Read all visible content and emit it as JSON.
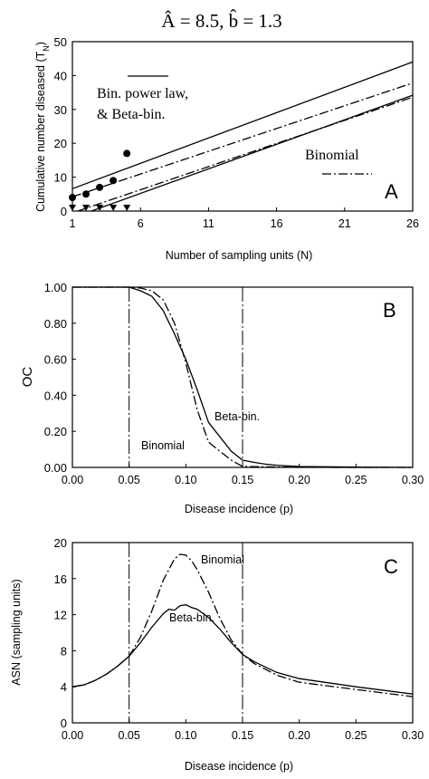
{
  "figure_title": "Â = 8.5, b̂ = 1.3",
  "chart_data": [
    {
      "type": "line",
      "panel_label": "A",
      "xlabel": "Number of sampling units (N)",
      "ylabel": "Cumulative number diseased (T",
      "ylabel_sub": "N",
      "xlim": [
        1,
        26
      ],
      "ylim": [
        0,
        50
      ],
      "xticks": [
        1,
        6,
        11,
        16,
        21,
        26
      ],
      "yticks": [
        0,
        10,
        20,
        30,
        40,
        50
      ],
      "legend": {
        "bpl_line1": "Bin. power law,",
        "bpl_line2": "& Beta-bin.",
        "binomial": "Binomial"
      },
      "series": [
        {
          "name": "Bin. power law, & Beta-bin.",
          "style": "solid",
          "x": [
            1,
            26
          ],
          "y": [
            6.6,
            44.0
          ]
        },
        {
          "name": "Binomial",
          "style": "dashdot",
          "x": [
            1,
            26
          ],
          "y": [
            4.2,
            37.8
          ]
        },
        {
          "style": "dashdot",
          "x": [
            1.4,
            26
          ],
          "y": [
            0.0,
            33.6
          ]
        },
        {
          "style": "solid",
          "x": [
            2.4,
            26
          ],
          "y": [
            0.0,
            34.2
          ]
        }
      ],
      "points_circle": {
        "x": [
          1,
          2,
          3,
          4,
          5
        ],
        "y": [
          4,
          5,
          7,
          9,
          17
        ]
      },
      "points_triangle": {
        "x": [
          1,
          2,
          3,
          4,
          5
        ],
        "y": [
          0,
          0,
          0,
          0,
          0
        ]
      }
    },
    {
      "type": "line",
      "panel_label": "B",
      "xlabel": "Disease incidence (p)",
      "ylabel": "OC",
      "xlim": [
        0,
        0.3
      ],
      "ylim": [
        0,
        1
      ],
      "xticks": [
        "0.00",
        "0.05",
        "0.10",
        "0.15",
        "0.20",
        "0.25",
        "0.30"
      ],
      "yticks": [
        "0.00",
        "0.20",
        "0.40",
        "0.60",
        "0.80",
        "1.00"
      ],
      "vlines": [
        0.05,
        0.15
      ],
      "labels": {
        "beta_bin": "Beta-bin.",
        "binomial": "Binomial"
      },
      "series": [
        {
          "name": "Beta-bin.",
          "style": "solid",
          "x": [
            0.0,
            0.05,
            0.06,
            0.07,
            0.08,
            0.09,
            0.1,
            0.11,
            0.12,
            0.13,
            0.14,
            0.15,
            0.16,
            0.17,
            0.18,
            0.2,
            0.25,
            0.3
          ],
          "y": [
            1.0,
            1.0,
            0.98,
            0.95,
            0.87,
            0.74,
            0.6,
            0.43,
            0.25,
            0.17,
            0.09,
            0.04,
            0.028,
            0.018,
            0.012,
            0.005,
            0.002,
            0.0
          ]
        },
        {
          "name": "Binomial",
          "style": "dashdot",
          "x": [
            0.0,
            0.05,
            0.06,
            0.07,
            0.08,
            0.09,
            0.1,
            0.11,
            0.12,
            0.13,
            0.14,
            0.15,
            0.16,
            0.18,
            0.2,
            0.25,
            0.3
          ],
          "y": [
            1.0,
            1.0,
            0.995,
            0.98,
            0.93,
            0.8,
            0.58,
            0.32,
            0.14,
            0.09,
            0.04,
            0.005,
            0.004,
            0.002,
            0.001,
            0.0,
            0.0
          ]
        }
      ]
    },
    {
      "type": "line",
      "panel_label": "C",
      "xlabel": "Disease incidence (p)",
      "ylabel": "ASN (sampling units)",
      "xlim": [
        0,
        0.3
      ],
      "ylim": [
        0,
        20
      ],
      "xticks": [
        "0.00",
        "0.05",
        "0.10",
        "0.15",
        "0.20",
        "0.25",
        "0.30"
      ],
      "yticks": [
        "0",
        "4",
        "8",
        "12",
        "16",
        "20"
      ],
      "vlines": [
        0.05,
        0.15
      ],
      "labels": {
        "binomial": "Binomial",
        "beta_bin": "Beta-bin."
      },
      "series": [
        {
          "name": "Beta-bin.",
          "style": "solid",
          "x": [
            0.0,
            0.01,
            0.02,
            0.03,
            0.04,
            0.05,
            0.06,
            0.07,
            0.08,
            0.085,
            0.09,
            0.095,
            0.1,
            0.105,
            0.11,
            0.12,
            0.13,
            0.14,
            0.15,
            0.16,
            0.18,
            0.2,
            0.25,
            0.3
          ],
          "y": [
            4.0,
            4.2,
            4.7,
            5.4,
            6.3,
            7.4,
            8.9,
            10.6,
            12.1,
            12.6,
            12.5,
            13.0,
            13.1,
            12.8,
            12.6,
            11.7,
            10.4,
            8.9,
            7.6,
            6.8,
            5.6,
            4.9,
            4.0,
            3.2
          ]
        },
        {
          "name": "Binomial",
          "style": "dashdot",
          "x": [
            0.0,
            0.01,
            0.02,
            0.03,
            0.04,
            0.05,
            0.06,
            0.07,
            0.08,
            0.09,
            0.095,
            0.1,
            0.105,
            0.11,
            0.12,
            0.13,
            0.14,
            0.15,
            0.16,
            0.18,
            0.2,
            0.25,
            0.3
          ],
          "y": [
            4.0,
            4.2,
            4.7,
            5.4,
            6.3,
            7.4,
            9.5,
            12.4,
            15.8,
            18.2,
            18.7,
            18.6,
            18.0,
            17.0,
            14.5,
            11.6,
            9.2,
            7.6,
            6.6,
            5.3,
            4.5,
            3.7,
            2.9
          ]
        }
      ]
    }
  ]
}
